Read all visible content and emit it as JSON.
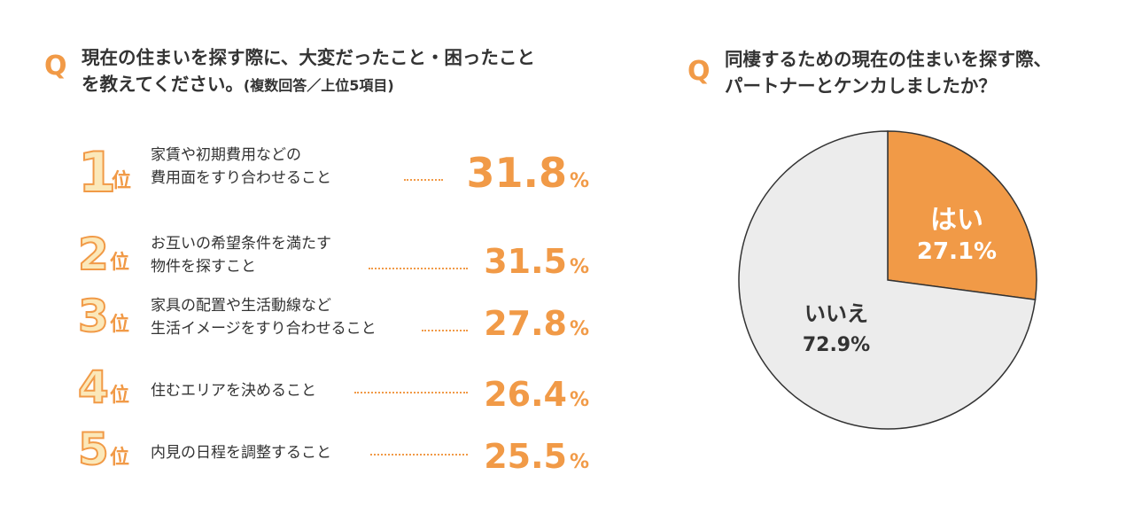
{
  "colors": {
    "accent": "#f19a47",
    "rank_fill": "#fbe8b9",
    "text": "#333333",
    "pie_no": "#ececec",
    "pie_yes": "#f19a47"
  },
  "left": {
    "q_mark": "Q",
    "question_line1": "現在の住まいを探す際に、大変だったこと・困ったこと",
    "question_line2": "を教えてください。",
    "question_note": "(複数回答／上位5項目)",
    "ranks": [
      {
        "num": "1",
        "pos": "位",
        "line1": "家賃や初期費用などの",
        "line2": "費用面をすり合わせること",
        "value": "31.8",
        "unit": "%"
      },
      {
        "num": "2",
        "pos": "位",
        "line1": "お互いの希望条件を満たす",
        "line2": "物件を探すこと",
        "value": "31.5",
        "unit": "%"
      },
      {
        "num": "3",
        "pos": "位",
        "line1": "家具の配置や生活動線など",
        "line2": "生活イメージをすり合わせること",
        "value": "27.8",
        "unit": "%"
      },
      {
        "num": "4",
        "pos": "位",
        "line1": "住むエリアを決めること",
        "line2": "",
        "value": "26.4",
        "unit": "%"
      },
      {
        "num": "5",
        "pos": "位",
        "line1": "内見の日程を調整すること",
        "line2": "",
        "value": "25.5",
        "unit": "%"
      }
    ]
  },
  "right": {
    "q_mark": "Q",
    "question_line1": "同棲するための現在の住まいを探す際、",
    "question_line2": "パートナーとケンカしましたか？"
  },
  "chart_data": [
    {
      "type": "bar",
      "categories": [
        "家賃や初期費用などの費用面をすり合わせること",
        "お互いの希望条件を満たす物件を探すこと",
        "家具の配置や生活動線など生活イメージをすり合わせること",
        "住むエリアを決めること",
        "内見の日程を調整すること"
      ],
      "values": [
        31.8,
        31.5,
        27.8,
        26.4,
        25.5
      ]
    },
    {
      "type": "pie",
      "slices": [
        {
          "label": "はい",
          "value": 27.1,
          "display": "27.1%",
          "color": "#f19a47"
        },
        {
          "label": "いいえ",
          "value": 72.9,
          "display": "72.9%",
          "color": "#ececec"
        }
      ]
    }
  ]
}
